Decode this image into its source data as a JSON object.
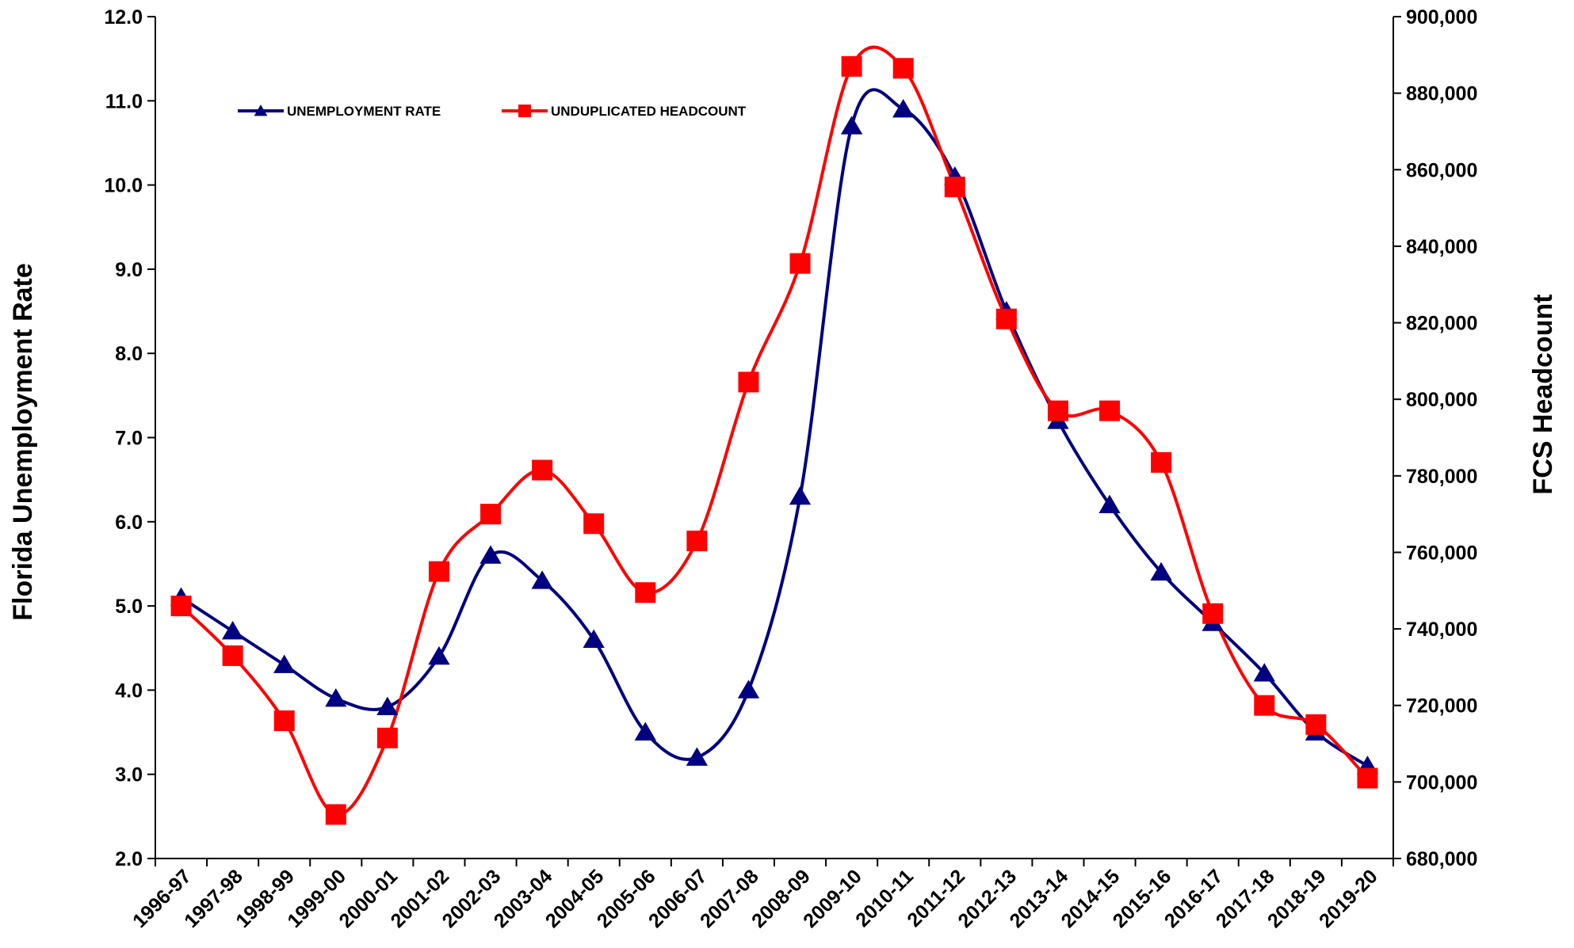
{
  "chart_data": {
    "type": "line",
    "categories": [
      "1996-97",
      "1997-98",
      "1998-99",
      "1999-00",
      "2000-01",
      "2001-02",
      "2002-03",
      "2003-04",
      "2004-05",
      "2005-06",
      "2006-07",
      "2007-08",
      "2008-09",
      "2009-10",
      "2010-11",
      "2011-12",
      "2012-13",
      "2013-14",
      "2014-15",
      "2015-16",
      "2016-17",
      "2017-18",
      "2018-19",
      "2019-20"
    ],
    "ylabel": "Florida Unemployment Rate",
    "y2label": "FCS Headcount",
    "ylim": [
      2.0,
      12.0
    ],
    "y2lim": [
      680000,
      900000
    ],
    "y_ticks": [
      "2.0",
      "3.0",
      "4.0",
      "5.0",
      "6.0",
      "7.0",
      "8.0",
      "9.0",
      "10.0",
      "11.0",
      "12.0"
    ],
    "y2_ticks": [
      "680,000",
      "700,000",
      "720,000",
      "740,000",
      "760,000",
      "780,000",
      "800,000",
      "820,000",
      "840,000",
      "860,000",
      "880,000",
      "900,000"
    ],
    "grid": false,
    "legend_position": "top-left",
    "series": [
      {
        "name": "UNEMPLOYMENT RATE",
        "axis": "left",
        "color": "#000080",
        "marker": "triangle",
        "values": [
          5.1,
          4.7,
          4.3,
          3.9,
          3.8,
          4.4,
          5.6,
          5.3,
          4.6,
          3.5,
          3.2,
          4.0,
          6.3,
          10.7,
          10.9,
          10.1,
          8.5,
          7.2,
          6.2,
          5.4,
          4.8,
          4.2,
          3.5,
          3.1
        ]
      },
      {
        "name": "UNDUPLICATED HEADCOUNT",
        "axis": "right",
        "color": "#ff0000",
        "marker": "square",
        "values": [
          746000,
          733000,
          716000,
          691500,
          711500,
          755000,
          770000,
          781500,
          767500,
          749500,
          763000,
          804500,
          835500,
          887000,
          886500,
          855500,
          821000,
          797000,
          797000,
          783500,
          744000,
          720000,
          715000,
          701000
        ]
      }
    ]
  }
}
